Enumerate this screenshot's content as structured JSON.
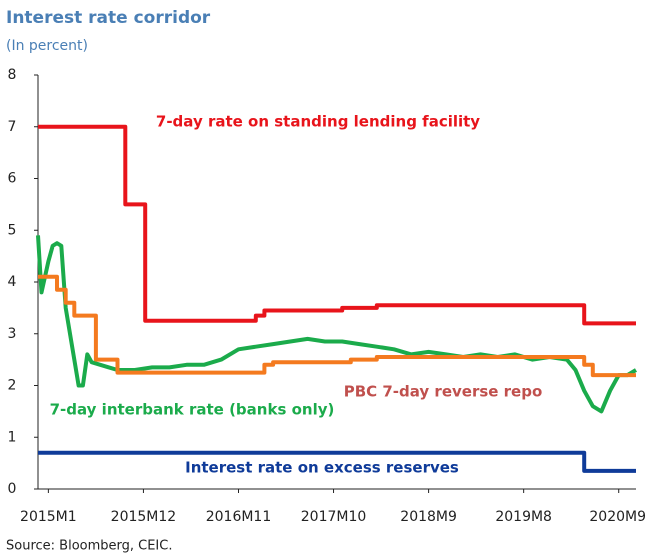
{
  "chart_data": {
    "type": "line",
    "title": "Interest rate corridor",
    "subtitle": "(In percent)",
    "source": "Source: Bloomberg, CEIC.",
    "xlim": [
      -1.2,
      68
    ],
    "xticks": [
      {
        "value": 0,
        "label": "2015M1"
      },
      {
        "value": 11,
        "label": "2015M12"
      },
      {
        "value": 22,
        "label": "2016M11"
      },
      {
        "value": 33,
        "label": "2017M10"
      },
      {
        "value": 44,
        "label": "2018M9"
      },
      {
        "value": 55,
        "label": "2019M8"
      },
      {
        "value": 66,
        "label": "2020M9"
      }
    ],
    "ylim": [
      0,
      8
    ],
    "yticks": [
      0,
      1,
      2,
      3,
      4,
      5,
      6,
      7,
      8
    ],
    "grid": false,
    "series": [
      {
        "name": "7-day rate on standing lending facility",
        "color": "#e8141b",
        "x": [
          -1.2,
          8.9,
          8.9,
          11.2,
          11.2,
          24,
          24,
          25,
          25,
          34,
          34,
          38,
          38,
          62,
          62,
          68
        ],
        "values": [
          7,
          7,
          5.5,
          5.5,
          3.25,
          3.25,
          3.35,
          3.35,
          3.45,
          3.45,
          3.5,
          3.5,
          3.55,
          3.55,
          3.2,
          3.2
        ]
      },
      {
        "name": "7-day interbank rate (banks only)",
        "color": "#1bab4b",
        "x": [
          -1.2,
          -0.8,
          0,
          0.5,
          1,
          1.5,
          2,
          3,
          3.5,
          4,
          4.5,
          5,
          6,
          7,
          8,
          10,
          12,
          14,
          16,
          18,
          20,
          22,
          24,
          26,
          28,
          30,
          32,
          34,
          36,
          38,
          40,
          42,
          44,
          46,
          48,
          50,
          52,
          54,
          56,
          58,
          60,
          61,
          62,
          63,
          64,
          65,
          66,
          67,
          68
        ],
        "values": [
          4.9,
          3.8,
          4.4,
          4.7,
          4.75,
          4.7,
          3.5,
          2.5,
          2.0,
          2.0,
          2.6,
          2.45,
          2.4,
          2.35,
          2.3,
          2.3,
          2.35,
          2.35,
          2.4,
          2.4,
          2.5,
          2.7,
          2.75,
          2.8,
          2.85,
          2.9,
          2.85,
          2.85,
          2.8,
          2.75,
          2.7,
          2.6,
          2.65,
          2.6,
          2.55,
          2.6,
          2.55,
          2.6,
          2.5,
          2.55,
          2.5,
          2.3,
          1.9,
          1.6,
          1.5,
          1.9,
          2.2,
          2.2,
          2.3
        ]
      },
      {
        "name": "PBC 7-day reverse repo",
        "color": "#f47a1f",
        "x": [
          -1.2,
          1,
          1,
          2,
          2,
          3,
          3,
          5.5,
          5.5,
          8,
          8,
          25,
          25,
          26,
          26,
          35,
          35,
          38,
          38,
          62,
          62,
          63,
          63,
          68
        ],
        "values": [
          4.1,
          4.1,
          3.85,
          3.85,
          3.6,
          3.6,
          3.35,
          3.35,
          2.5,
          2.5,
          2.25,
          2.25,
          2.4,
          2.4,
          2.45,
          2.45,
          2.5,
          2.5,
          2.55,
          2.55,
          2.4,
          2.4,
          2.2,
          2.2
        ]
      },
      {
        "name": "Interest rate on excess reserves",
        "color": "#0f3b99",
        "x": [
          -1.2,
          62,
          62,
          68
        ],
        "values": [
          0.7,
          0.7,
          0.35,
          0.35
        ]
      }
    ]
  }
}
